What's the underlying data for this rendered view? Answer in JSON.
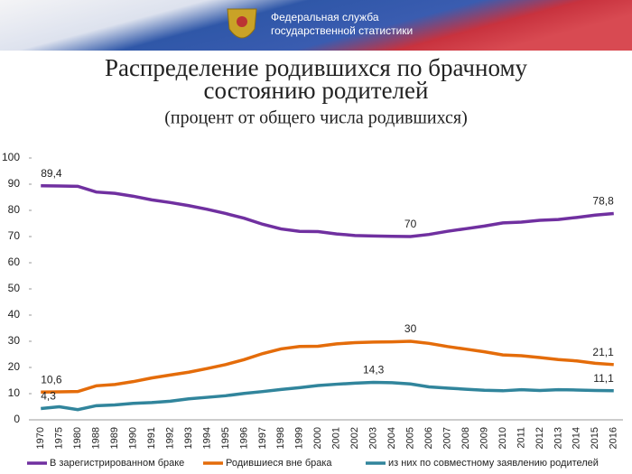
{
  "header": {
    "lines": [
      "Федеральная служба",
      "государственной статистики"
    ]
  },
  "chart_data": {
    "type": "line",
    "title": [
      "Распределение родившихся по брачному",
      "состоянию родителей"
    ],
    "subtitle": "(процент от общего числа родившихся)",
    "categories": [
      "1970",
      "1975",
      "1980",
      "1988",
      "1989",
      "1990",
      "1991",
      "1992",
      "1993",
      "1994",
      "1995",
      "1996",
      "1997",
      "1998",
      "1999",
      "2000",
      "2001",
      "2002",
      "2003",
      "2004",
      "2005",
      "2006",
      "2007",
      "2008",
      "2009",
      "2010",
      "2011",
      "2012",
      "2013",
      "2014",
      "2015",
      "2016"
    ],
    "series": [
      {
        "name": "В зарегистрированном браке",
        "color": "#7030a0",
        "values": [
          89.4,
          89.3,
          89.2,
          87.0,
          86.5,
          85.4,
          84.0,
          83.0,
          81.8,
          80.4,
          78.8,
          77.0,
          74.7,
          72.9,
          72.0,
          71.9,
          71.0,
          70.4,
          70.2,
          70.1,
          70.0,
          70.8,
          72.0,
          73.0,
          74.0,
          75.2,
          75.5,
          76.2,
          76.5,
          77.3,
          78.2,
          78.8
        ],
        "value_labels": [
          "89,4",
          null,
          null,
          null,
          null,
          null,
          null,
          null,
          null,
          null,
          null,
          null,
          null,
          null,
          null,
          null,
          null,
          null,
          null,
          null,
          "70",
          null,
          null,
          null,
          null,
          null,
          null,
          null,
          null,
          null,
          null,
          "78,8"
        ]
      },
      {
        "name": "Родившиеся вне брака",
        "color": "#e46c0a",
        "values": [
          10.6,
          10.7,
          10.8,
          13.0,
          13.5,
          14.6,
          16.0,
          17.1,
          18.2,
          19.6,
          21.1,
          23.0,
          25.3,
          27.1,
          28.0,
          28.1,
          29.0,
          29.5,
          29.7,
          29.8,
          30.0,
          29.2,
          28.0,
          27.0,
          26.0,
          24.8,
          24.5,
          23.8,
          23.0,
          22.5,
          21.6,
          21.1
        ],
        "value_labels": [
          "10,6",
          null,
          null,
          null,
          null,
          null,
          null,
          null,
          null,
          null,
          null,
          null,
          null,
          null,
          null,
          null,
          null,
          null,
          null,
          null,
          "30",
          null,
          null,
          null,
          null,
          null,
          null,
          null,
          null,
          null,
          null,
          "21,1"
        ]
      },
      {
        "name": "из них по совместному заявлению родителей",
        "color": "#31859c",
        "values": [
          4.3,
          5.0,
          3.9,
          5.4,
          5.7,
          6.3,
          6.6,
          7.1,
          8.0,
          8.6,
          9.2,
          10.1,
          10.8,
          11.6,
          12.3,
          13.1,
          13.6,
          14.0,
          14.3,
          14.2,
          13.7,
          12.6,
          12.1,
          11.7,
          11.3,
          11.1,
          11.5,
          11.2,
          11.5,
          11.4,
          11.2,
          11.1
        ],
        "value_labels": [
          "4,3",
          null,
          null,
          null,
          null,
          null,
          null,
          null,
          null,
          null,
          null,
          null,
          null,
          null,
          null,
          null,
          null,
          null,
          "14,3",
          null,
          null,
          null,
          null,
          null,
          null,
          null,
          null,
          null,
          null,
          null,
          null,
          "11,1"
        ]
      }
    ],
    "ylim": [
      0,
      100
    ],
    "yticks": [
      0,
      10,
      20,
      30,
      40,
      50,
      60,
      70,
      80,
      90,
      100
    ],
    "grid": false,
    "legend": "bottom"
  }
}
